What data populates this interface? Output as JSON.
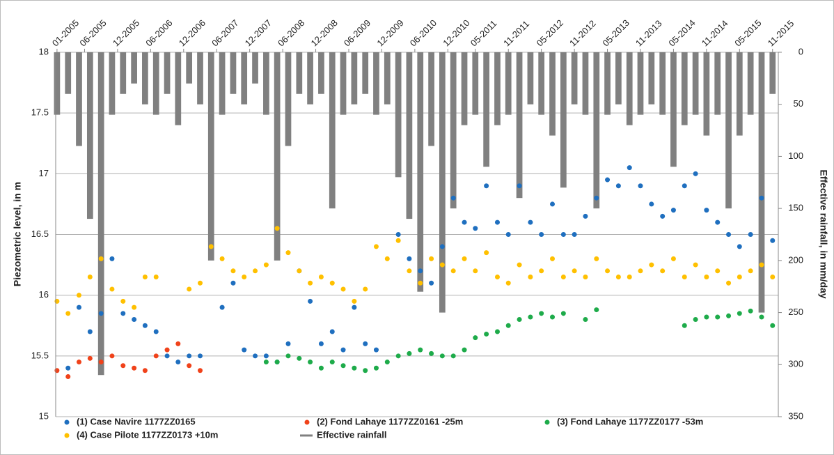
{
  "chart_data": {
    "type": "scatter",
    "y_label": "Piezometric level, in m",
    "y2_label": "Effective rainfall, in mm/day",
    "xlim": [
      2004.98,
      2015.92
    ],
    "xticks": [
      {
        "value": 2005.0,
        "label": "01-2005"
      },
      {
        "value": 2005.417,
        "label": "06-2005"
      },
      {
        "value": 2005.917,
        "label": "12-2005"
      },
      {
        "value": 2006.417,
        "label": "06-2006"
      },
      {
        "value": 2006.917,
        "label": "12-2006"
      },
      {
        "value": 2007.417,
        "label": "06-2007"
      },
      {
        "value": 2007.917,
        "label": "12-2007"
      },
      {
        "value": 2008.417,
        "label": "06-2008"
      },
      {
        "value": 2008.917,
        "label": "12-2008"
      },
      {
        "value": 2009.417,
        "label": "06-2009"
      },
      {
        "value": 2009.917,
        "label": "12-2009"
      },
      {
        "value": 2010.417,
        "label": "06-2010"
      },
      {
        "value": 2010.917,
        "label": "12-2010"
      },
      {
        "value": 2011.333,
        "label": "05-2011"
      },
      {
        "value": 2011.833,
        "label": "11-2011"
      },
      {
        "value": 2012.333,
        "label": "05-2012"
      },
      {
        "value": 2012.833,
        "label": "11-2012"
      },
      {
        "value": 2013.333,
        "label": "05-2013"
      },
      {
        "value": 2013.833,
        "label": "11-2013"
      },
      {
        "value": 2014.333,
        "label": "05-2014"
      },
      {
        "value": 2014.833,
        "label": "11-2014"
      },
      {
        "value": 2015.333,
        "label": "05-2015"
      },
      {
        "value": 2015.833,
        "label": "11-2015"
      }
    ],
    "ylim": [
      15,
      18
    ],
    "yticks": [
      15,
      15.5,
      16,
      16.5,
      17,
      17.5,
      18
    ],
    "y2lim": [
      350,
      0
    ],
    "y2ticks": [
      0,
      50,
      100,
      150,
      200,
      250,
      300,
      350
    ],
    "grid": true,
    "x": [
      2005.0,
      2005.167,
      2005.333,
      2005.5,
      2005.667,
      2005.833,
      2006.0,
      2006.167,
      2006.333,
      2006.5,
      2006.667,
      2006.833,
      2007.0,
      2007.167,
      2007.333,
      2007.5,
      2007.667,
      2007.833,
      2008.0,
      2008.167,
      2008.333,
      2008.5,
      2008.667,
      2008.833,
      2009.0,
      2009.167,
      2009.333,
      2009.5,
      2009.667,
      2009.833,
      2010.0,
      2010.167,
      2010.333,
      2010.5,
      2010.667,
      2010.833,
      2011.0,
      2011.167,
      2011.333,
      2011.5,
      2011.667,
      2011.833,
      2012.0,
      2012.167,
      2012.333,
      2012.5,
      2012.667,
      2012.833,
      2013.0,
      2013.167,
      2013.333,
      2013.5,
      2013.667,
      2013.833,
      2014.0,
      2014.167,
      2014.333,
      2014.5,
      2014.667,
      2014.833,
      2015.0,
      2015.167,
      2015.333,
      2015.5,
      2015.667,
      2015.833
    ],
    "series": [
      {
        "name": "(1) Case Navire 1177ZZ0165",
        "type": "scatter",
        "color": "#1f6fbf",
        "values": [
          null,
          15.4,
          15.9,
          15.7,
          15.85,
          16.3,
          15.85,
          15.8,
          15.75,
          15.7,
          15.5,
          15.45,
          15.5,
          15.5,
          null,
          15.9,
          16.1,
          15.55,
          15.5,
          15.5,
          15.45,
          15.6,
          16.2,
          15.95,
          15.6,
          15.7,
          15.55,
          15.9,
          15.6,
          15.55,
          null,
          16.5,
          16.3,
          16.2,
          16.1,
          16.4,
          16.8,
          16.6,
          16.55,
          16.9,
          16.6,
          16.5,
          16.9,
          16.6,
          16.5,
          16.75,
          16.5,
          16.5,
          16.65,
          16.8,
          16.95,
          16.9,
          17.05,
          16.9,
          16.75,
          16.65,
          16.7,
          16.9,
          17.0,
          16.7,
          16.6,
          16.5,
          16.4,
          16.5,
          16.8,
          16.45
        ]
      },
      {
        "name": "(2) Fond Lahaye 1177ZZ0161 -25m",
        "type": "scatter",
        "color": "#f0421a",
        "values": [
          15.38,
          15.33,
          15.45,
          15.48,
          15.45,
          15.5,
          15.42,
          15.4,
          15.38,
          15.5,
          15.55,
          15.6,
          15.42,
          15.38,
          null,
          null,
          null,
          null,
          null,
          null,
          null,
          null,
          null,
          null,
          null,
          null,
          null,
          null,
          null,
          null,
          null,
          null,
          null,
          null,
          null,
          null,
          null,
          null,
          null,
          null,
          null,
          null,
          null,
          null,
          null,
          null,
          null,
          null,
          null,
          null,
          null,
          null,
          null,
          null,
          null,
          null,
          null,
          null,
          null,
          null,
          null,
          null,
          null,
          null,
          null,
          null
        ]
      },
      {
        "name": "(3) Fond Lahaye 1177ZZ0177 -53m",
        "type": "scatter",
        "color": "#1eab4a",
        "values": [
          null,
          null,
          null,
          null,
          null,
          null,
          null,
          null,
          null,
          null,
          null,
          null,
          null,
          null,
          null,
          null,
          null,
          null,
          null,
          15.45,
          15.45,
          15.5,
          15.48,
          15.45,
          15.4,
          15.45,
          15.42,
          15.4,
          15.38,
          15.4,
          15.45,
          15.5,
          15.52,
          15.55,
          15.52,
          15.5,
          15.5,
          15.55,
          15.65,
          15.68,
          15.7,
          15.75,
          15.8,
          15.82,
          15.85,
          15.82,
          15.85,
          null,
          15.8,
          15.88,
          null,
          null,
          null,
          null,
          null,
          null,
          null,
          15.75,
          15.8,
          15.82,
          15.82,
          15.83,
          15.85,
          15.87,
          15.82,
          15.75
        ]
      },
      {
        "name": "(4) Case Pilote 1177ZZ0173 +10m",
        "type": "scatter",
        "color": "#ffc000",
        "values": [
          15.95,
          15.85,
          16.0,
          16.15,
          16.3,
          16.05,
          15.95,
          15.9,
          16.15,
          16.15,
          null,
          null,
          16.05,
          16.1,
          16.4,
          16.3,
          16.2,
          16.15,
          16.2,
          16.25,
          16.55,
          16.35,
          16.2,
          16.1,
          16.15,
          16.1,
          16.05,
          15.95,
          16.05,
          16.4,
          16.3,
          16.45,
          16.2,
          16.1,
          16.3,
          16.25,
          16.2,
          16.3,
          16.2,
          16.35,
          16.15,
          16.1,
          16.25,
          16.15,
          16.2,
          16.3,
          16.15,
          16.2,
          16.15,
          16.3,
          16.2,
          16.15,
          16.15,
          16.2,
          16.25,
          16.2,
          16.3,
          16.15,
          16.25,
          16.15,
          16.2,
          16.1,
          16.15,
          16.2,
          16.25,
          16.15
        ]
      },
      {
        "name": "Effective rainfall",
        "type": "bar",
        "axis": "y2",
        "color": "#808080",
        "values": [
          60,
          40,
          90,
          160,
          310,
          60,
          40,
          30,
          50,
          60,
          40,
          70,
          30,
          50,
          200,
          60,
          40,
          50,
          30,
          60,
          200,
          90,
          40,
          50,
          40,
          150,
          60,
          50,
          40,
          60,
          50,
          120,
          160,
          230,
          90,
          250,
          150,
          70,
          60,
          110,
          70,
          60,
          140,
          50,
          60,
          80,
          130,
          50,
          60,
          150,
          60,
          50,
          70,
          60,
          50,
          60,
          110,
          70,
          60,
          80,
          60,
          150,
          80,
          60,
          250,
          40
        ]
      }
    ]
  }
}
